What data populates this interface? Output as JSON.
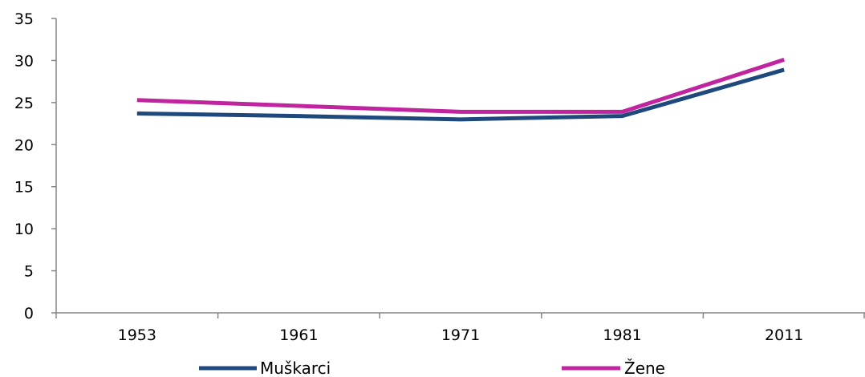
{
  "chart_data": {
    "type": "line",
    "title": "",
    "xlabel": "",
    "ylabel": "",
    "categories": [
      "1953",
      "1961",
      "1971",
      "1981",
      "2011"
    ],
    "ylim": [
      0,
      35
    ],
    "yticks": [
      0,
      5,
      10,
      15,
      20,
      25,
      30,
      35
    ],
    "grid": false,
    "legend": "bottom",
    "series": [
      {
        "name": "Muškarci",
        "color": "#1f497d",
        "values": [
          23.7,
          23.4,
          23.0,
          23.4,
          28.9
        ]
      },
      {
        "name": "Žene",
        "color": "#c0249f",
        "values": [
          25.3,
          24.6,
          23.9,
          23.9,
          30.1
        ]
      }
    ]
  }
}
